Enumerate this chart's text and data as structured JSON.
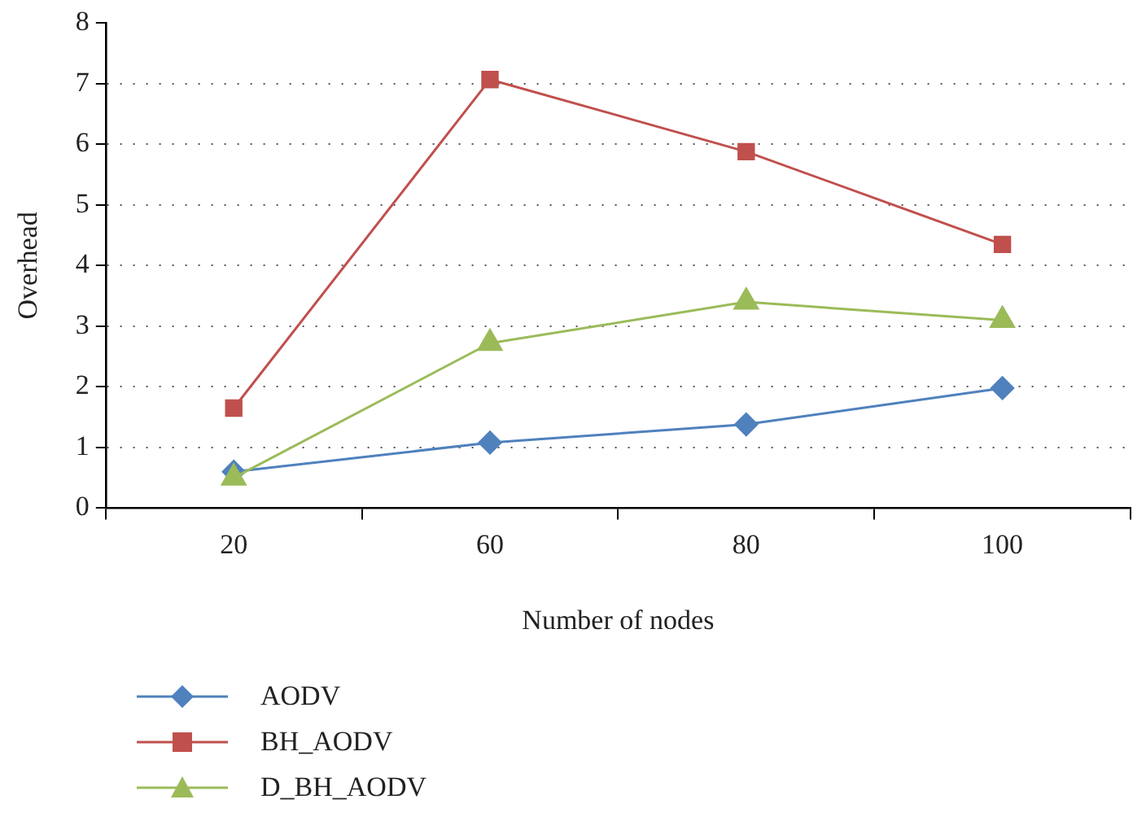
{
  "chart_data": {
    "type": "line",
    "xlabel": "Number of nodes",
    "ylabel": "Overhead",
    "categories": [
      "20",
      "60",
      "80",
      "100"
    ],
    "ylim": [
      0,
      8
    ],
    "yticks": [
      0,
      1,
      2,
      3,
      4,
      5,
      6,
      7,
      8
    ],
    "grid": "y",
    "legend": "bottom left",
    "line_style": "solid",
    "series": [
      {
        "name": "AODV",
        "color": "#4f81bd",
        "marker": "diamond",
        "values": [
          0.6,
          1.08,
          1.38,
          1.98
        ]
      },
      {
        "name": "BH_AODV",
        "color": "#c0504d",
        "marker": "square",
        "values": [
          1.65,
          7.07,
          5.88,
          4.35
        ]
      },
      {
        "name": "D_BH_AODV",
        "color": "#9bbb59",
        "marker": "triangle",
        "values": [
          0.5,
          2.72,
          3.4,
          3.1
        ]
      }
    ]
  }
}
